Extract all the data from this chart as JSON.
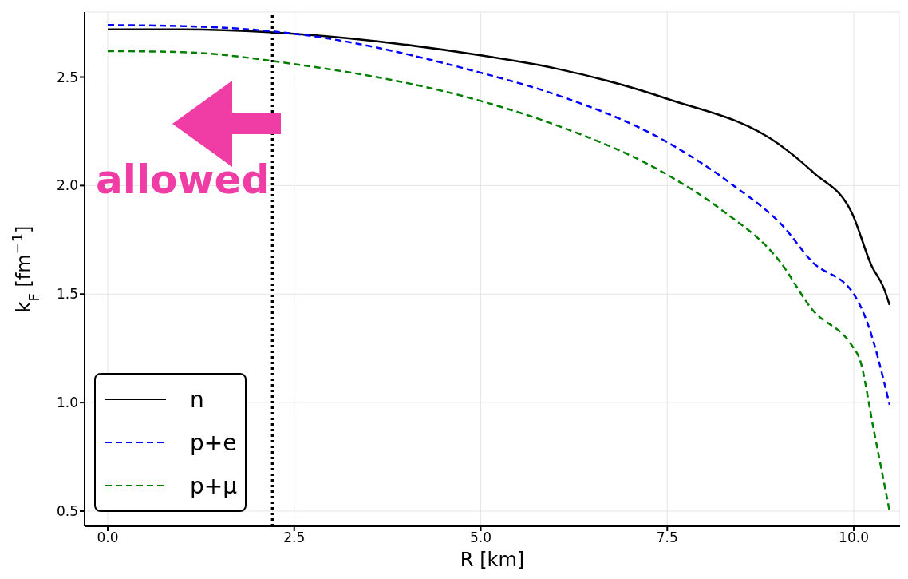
{
  "chart_data": {
    "type": "line",
    "xlabel": "R [km]",
    "ylabel": "k$_{F}$ [fm$^{−1}$]",
    "xlim": [
      -0.31,
      10.62
    ],
    "ylim": [
      0.43,
      2.8
    ],
    "xticks": [
      {
        "value": 0,
        "label": "0.0"
      },
      2.5,
      {
        "value": 5,
        "label": "5.0"
      },
      7.5,
      {
        "value": 10,
        "label": "10.0"
      }
    ],
    "yticks": [
      0.5,
      {
        "value": 1,
        "label": "1.0"
      },
      1.5,
      {
        "value": 2,
        "label": "2.0"
      },
      2.5
    ],
    "grid": true,
    "legend": "bottom left",
    "marker": "none",
    "series": [
      {
        "name": "n",
        "color": "#000000",
        "line_style": "solid",
        "x": [
          0,
          1,
          2.5,
          5,
          6,
          7.5,
          9,
          9.46,
          9.98,
          10.24,
          10.4,
          10.48
        ],
        "values": [
          2.72,
          2.72,
          2.7,
          2.6,
          2.54,
          2.4,
          2.19,
          2.06,
          1.87,
          1.63,
          1.53,
          1.45
        ]
      },
      {
        "name": "p+e",
        "color": "#0000ff",
        "line_style": "dashed",
        "x": [
          0,
          1,
          2.5,
          5,
          6,
          7.5,
          8.39,
          9.06,
          9.44,
          10,
          10.18,
          10.48
        ],
        "values": [
          2.74,
          2.735,
          2.7,
          2.52,
          2.42,
          2.2,
          2.0,
          1.81,
          1.65,
          1.5,
          1.37,
          0.99
        ]
      },
      {
        "name": "p+μ",
        "color": "#008000",
        "line_style": "dashed",
        "x": [
          0,
          1,
          2.5,
          5,
          6,
          7.5,
          8.22,
          9.01,
          9.44,
          9.98,
          10.08,
          10.27,
          10.48
        ],
        "values": [
          2.62,
          2.615,
          2.56,
          2.39,
          2.28,
          2.05,
          1.89,
          1.65,
          1.43,
          1.26,
          1.2,
          0.87,
          0.5
        ]
      }
    ],
    "ref_lines": [
      {
        "axis": "x",
        "value": 2.21,
        "color": "#000000",
        "line_style": "dotted"
      }
    ],
    "annotations": [
      "allowed"
    ]
  }
}
